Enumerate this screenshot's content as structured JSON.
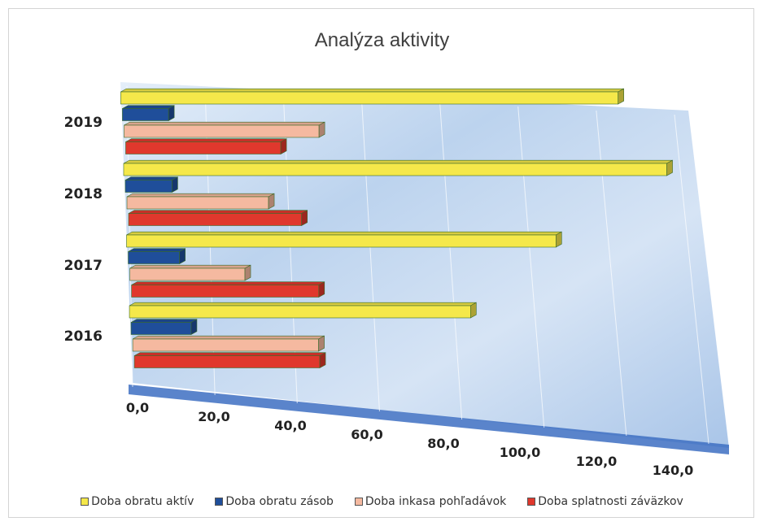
{
  "chart_data": {
    "type": "bar",
    "orientation": "horizontal",
    "style": "3d-perspective",
    "title": "Analýza aktivity",
    "categories": [
      "2016",
      "2017",
      "2018",
      "2019"
    ],
    "xlim": [
      0,
      140
    ],
    "x_ticks": [
      "0,0",
      "20,0",
      "40,0",
      "60,0",
      "80,0",
      "100,0",
      "120,0",
      "140,0"
    ],
    "gridlines": true,
    "legend_position": "bottom",
    "series": [
      {
        "name": "Doba obratu aktív",
        "color": "#f5e84a",
        "values": [
          84,
          107,
          137,
          127
        ]
      },
      {
        "name": "Doba obratu zásob",
        "color": "#1f4e9a",
        "values": [
          15,
          13,
          12,
          12
        ]
      },
      {
        "name": "Doba inkasa pohľadávok",
        "color": "#f5b9a0",
        "values": [
          46,
          29,
          36,
          50
        ]
      },
      {
        "name": "Doba splatnosti záväzkov",
        "color": "#e0382d",
        "values": [
          46,
          47,
          44,
          40
        ]
      }
    ]
  }
}
